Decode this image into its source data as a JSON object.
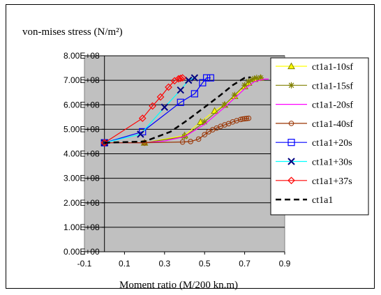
{
  "chart_data": {
    "type": "line",
    "title": "von-mises stress (N/m²)",
    "xlabel": "Moment ratio (M/200 kn.m)",
    "ylabel": "",
    "xlim": [
      -0.1,
      0.9
    ],
    "ylim": [
      0,
      800000000
    ],
    "x_ticks": [
      -0.1,
      0.1,
      0.3,
      0.5,
      0.7,
      0.9
    ],
    "x_tick_labels": [
      "-0.1",
      "0.1",
      "0.3",
      "0.5",
      "0.7",
      "0.9"
    ],
    "y_ticks": [
      0,
      100000000,
      200000000,
      300000000,
      400000000,
      500000000,
      600000000,
      700000000,
      800000000
    ],
    "y_tick_labels": [
      "0.00E+00",
      "1.00E+08",
      "2.00E+08",
      "3.00E+08",
      "4.00E+08",
      "5.00E+08",
      "6.00E+08",
      "7.00E+08",
      "8.00E+08"
    ],
    "grid": "horizontal",
    "plot_background": "#c0c0c0",
    "legend_position": "right",
    "series": [
      {
        "name": "ct1a1-10sf",
        "color": "#ffff00",
        "line_style": "solid",
        "marker": "triangle",
        "marker_color": "#808000",
        "x": [
          0,
          0.2,
          0.4,
          0.48,
          0.55,
          0.6,
          0.65,
          0.7,
          0.72,
          0.75,
          0.78
        ],
        "y": [
          445000000,
          445000000,
          475000000,
          530000000,
          575000000,
          600000000,
          635000000,
          675000000,
          690000000,
          705000000,
          710000000
        ]
      },
      {
        "name": "ct1a1-15sf",
        "color": "#808000",
        "line_style": "solid",
        "marker": "asterisk",
        "marker_color": "#808000",
        "x": [
          0,
          0.2,
          0.4,
          0.5,
          0.6,
          0.65,
          0.7,
          0.72,
          0.74,
          0.76,
          0.78
        ],
        "y": [
          445000000,
          445000000,
          470000000,
          530000000,
          600000000,
          640000000,
          680000000,
          695000000,
          705000000,
          710000000,
          710000000
        ]
      },
      {
        "name": "ct1a1-20sf",
        "color": "#ff00ff",
        "line_style": "solid",
        "marker": "none",
        "marker_color": "#ff00ff",
        "x": [
          0,
          0.2,
          0.3,
          0.4,
          0.5,
          0.6,
          0.7,
          0.75,
          0.8,
          0.82
        ],
        "y": [
          445000000,
          445000000,
          452000000,
          470000000,
          520000000,
          590000000,
          665000000,
          695000000,
          705000000,
          705000000
        ]
      },
      {
        "name": "ct1a1-40sf",
        "color": "#993300",
        "line_style": "solid",
        "marker": "circle",
        "marker_color": "#993300",
        "x": [
          0,
          0.2,
          0.39,
          0.43,
          0.47,
          0.5,
          0.52,
          0.54,
          0.56,
          0.58,
          0.6,
          0.62,
          0.64,
          0.66,
          0.68,
          0.69,
          0.7,
          0.71,
          0.72
        ],
        "y": [
          445000000,
          445000000,
          448000000,
          450000000,
          460000000,
          478000000,
          490000000,
          498000000,
          505000000,
          512000000,
          518000000,
          523000000,
          530000000,
          535000000,
          540000000,
          542000000,
          543000000,
          544000000,
          545000000
        ]
      },
      {
        "name": "ct1a1+20s",
        "color": "#0000ff",
        "line_style": "solid",
        "marker": "square",
        "marker_color": "#0000ff",
        "x": [
          0,
          0.19,
          0.38,
          0.45,
          0.49,
          0.51,
          0.53
        ],
        "y": [
          445000000,
          490000000,
          610000000,
          645000000,
          690000000,
          710000000,
          710000000
        ]
      },
      {
        "name": "ct1a1+30s",
        "color": "#00ffff",
        "line_style": "solid",
        "marker": "cross",
        "marker_color": "#000080",
        "x": [
          0,
          0.18,
          0.3,
          0.38,
          0.42,
          0.45
        ],
        "y": [
          445000000,
          480000000,
          590000000,
          660000000,
          700000000,
          710000000
        ]
      },
      {
        "name": "ct1a1+37s",
        "color": "#ff0000",
        "line_style": "solid",
        "marker": "diamond",
        "marker_color": "#ff0000",
        "x": [
          0,
          0.19,
          0.24,
          0.28,
          0.32,
          0.35,
          0.37,
          0.38,
          0.39
        ],
        "y": [
          445000000,
          545000000,
          595000000,
          632000000,
          672000000,
          698000000,
          706000000,
          708000000,
          710000000
        ]
      },
      {
        "name": "ct1a1",
        "color": "#000000",
        "line_style": "dashed",
        "marker": "none",
        "marker_color": "#000000",
        "x": [
          0,
          0.2,
          0.33,
          0.41,
          0.5,
          0.58,
          0.64,
          0.7,
          0.73
        ],
        "y": [
          445000000,
          450000000,
          490000000,
          535000000,
          590000000,
          640000000,
          680000000,
          710000000,
          712000000
        ]
      }
    ]
  }
}
